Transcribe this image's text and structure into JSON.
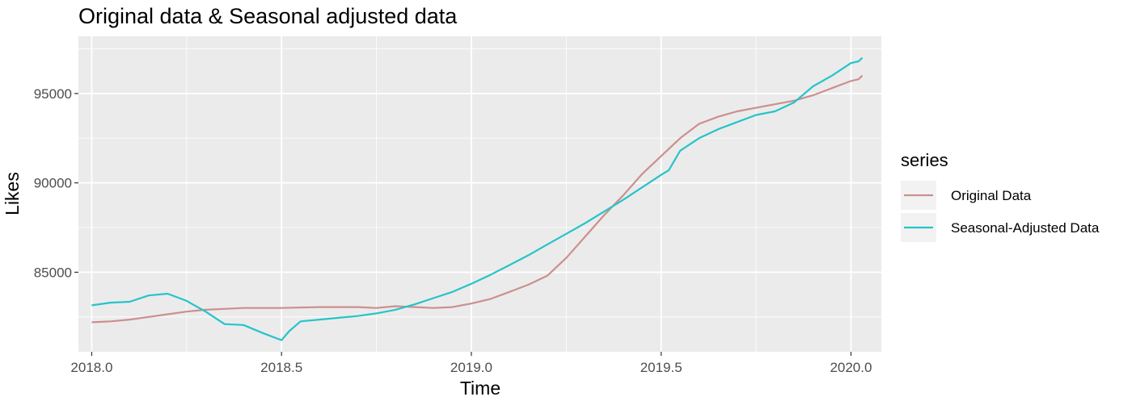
{
  "chart_data": {
    "type": "line",
    "title": "Original data & Seasonal adjusted data",
    "xlabel": "Time",
    "ylabel": "Likes",
    "xlim": [
      2017.965,
      2020.08
    ],
    "ylim": [
      80550,
      98200
    ],
    "x_ticks": [
      2018.0,
      2018.5,
      2019.0,
      2019.5,
      2020.0
    ],
    "x_tick_labels": [
      "2018.0",
      "2018.5",
      "2019.0",
      "2019.5",
      "2020.0"
    ],
    "y_ticks": [
      85000,
      90000,
      95000
    ],
    "y_tick_labels": [
      "85000",
      "90000",
      "95000"
    ],
    "grid": true,
    "legend": {
      "title": "series",
      "position": "right"
    },
    "series": [
      {
        "name": "Original Data",
        "color": "#cc8f8f",
        "points": [
          [
            2018.0,
            82200
          ],
          [
            2018.05,
            82250
          ],
          [
            2018.1,
            82350
          ],
          [
            2018.15,
            82500
          ],
          [
            2018.2,
            82650
          ],
          [
            2018.25,
            82800
          ],
          [
            2018.3,
            82900
          ],
          [
            2018.35,
            82950
          ],
          [
            2018.4,
            83000
          ],
          [
            2018.5,
            83000
          ],
          [
            2018.6,
            83050
          ],
          [
            2018.7,
            83050
          ],
          [
            2018.75,
            83000
          ],
          [
            2018.8,
            83100
          ],
          [
            2018.9,
            83000
          ],
          [
            2018.95,
            83050
          ],
          [
            2019.0,
            83250
          ],
          [
            2019.05,
            83500
          ],
          [
            2019.1,
            83900
          ],
          [
            2019.15,
            84300
          ],
          [
            2019.2,
            84800
          ],
          [
            2019.25,
            85800
          ],
          [
            2019.3,
            87000
          ],
          [
            2019.35,
            88200
          ],
          [
            2019.4,
            89300
          ],
          [
            2019.45,
            90500
          ],
          [
            2019.5,
            91500
          ],
          [
            2019.55,
            92500
          ],
          [
            2019.6,
            93300
          ],
          [
            2019.65,
            93700
          ],
          [
            2019.7,
            94000
          ],
          [
            2019.75,
            94200
          ],
          [
            2019.8,
            94400
          ],
          [
            2019.85,
            94600
          ],
          [
            2019.9,
            94900
          ],
          [
            2019.95,
            95300
          ],
          [
            2020.0,
            95700
          ],
          [
            2020.02,
            95800
          ],
          [
            2020.03,
            96000
          ]
        ]
      },
      {
        "name": "Seasonal-Adjusted Data",
        "color": "#26c4c9",
        "points": [
          [
            2018.0,
            83150
          ],
          [
            2018.05,
            83300
          ],
          [
            2018.1,
            83350
          ],
          [
            2018.15,
            83700
          ],
          [
            2018.2,
            83800
          ],
          [
            2018.25,
            83400
          ],
          [
            2018.3,
            82800
          ],
          [
            2018.35,
            82100
          ],
          [
            2018.4,
            82050
          ],
          [
            2018.45,
            81600
          ],
          [
            2018.5,
            81200
          ],
          [
            2018.52,
            81700
          ],
          [
            2018.55,
            82250
          ],
          [
            2018.6,
            82350
          ],
          [
            2018.65,
            82450
          ],
          [
            2018.7,
            82550
          ],
          [
            2018.75,
            82700
          ],
          [
            2018.8,
            82900
          ],
          [
            2018.85,
            83200
          ],
          [
            2018.9,
            83550
          ],
          [
            2018.95,
            83900
          ],
          [
            2019.0,
            84350
          ],
          [
            2019.05,
            84850
          ],
          [
            2019.1,
            85400
          ],
          [
            2019.15,
            85950
          ],
          [
            2019.2,
            86550
          ],
          [
            2019.25,
            87150
          ],
          [
            2019.3,
            87750
          ],
          [
            2019.35,
            88400
          ],
          [
            2019.4,
            89050
          ],
          [
            2019.45,
            89750
          ],
          [
            2019.5,
            90450
          ],
          [
            2019.52,
            90700
          ],
          [
            2019.55,
            91800
          ],
          [
            2019.6,
            92500
          ],
          [
            2019.65,
            93000
          ],
          [
            2019.7,
            93400
          ],
          [
            2019.75,
            93800
          ],
          [
            2019.8,
            94000
          ],
          [
            2019.85,
            94500
          ],
          [
            2019.9,
            95400
          ],
          [
            2019.95,
            96000
          ],
          [
            2020.0,
            96700
          ],
          [
            2020.02,
            96800
          ],
          [
            2020.03,
            97000
          ]
        ]
      }
    ]
  }
}
